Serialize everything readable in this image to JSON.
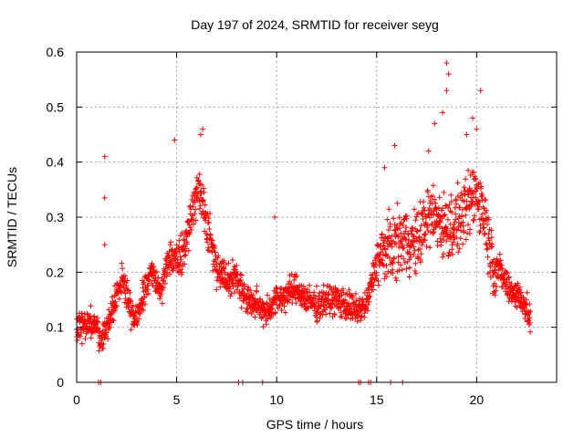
{
  "chart_data": {
    "type": "scatter",
    "title": "Day 197 of 2024, SRMTID for receiver seyg",
    "xlabel": "GPS time / hours",
    "ylabel": "SRMTID / TECUs",
    "xlim": [
      0,
      24
    ],
    "ylim": [
      0,
      0.6
    ],
    "xticks": [
      0,
      5,
      10,
      15,
      20
    ],
    "xtick_labels": [
      "0",
      "5",
      "10",
      "15",
      "20"
    ],
    "yticks": [
      0,
      0.1,
      0.2,
      0.3,
      0.4,
      0.5,
      0.6
    ],
    "ytick_labels": [
      "0",
      "0.1",
      "0.2",
      "0.3",
      "0.4",
      "0.5",
      "0.6"
    ],
    "grid": true,
    "marker": "+",
    "color": "#ff0000",
    "trend": [
      [
        0.0,
        0.1
      ],
      [
        0.5,
        0.11
      ],
      [
        1.0,
        0.1
      ],
      [
        1.2,
        0.07
      ],
      [
        1.5,
        0.1
      ],
      [
        2.0,
        0.16
      ],
      [
        2.3,
        0.19
      ],
      [
        2.7,
        0.13
      ],
      [
        3.0,
        0.11
      ],
      [
        3.4,
        0.17
      ],
      [
        3.8,
        0.2
      ],
      [
        4.2,
        0.16
      ],
      [
        4.5,
        0.22
      ],
      [
        5.0,
        0.23
      ],
      [
        5.4,
        0.24
      ],
      [
        5.8,
        0.32
      ],
      [
        6.1,
        0.35
      ],
      [
        6.3,
        0.33
      ],
      [
        6.6,
        0.27
      ],
      [
        7.0,
        0.21
      ],
      [
        7.5,
        0.19
      ],
      [
        8.0,
        0.19
      ],
      [
        8.5,
        0.15
      ],
      [
        9.0,
        0.14
      ],
      [
        9.5,
        0.13
      ],
      [
        10.0,
        0.15
      ],
      [
        10.5,
        0.16
      ],
      [
        11.0,
        0.17
      ],
      [
        11.5,
        0.15
      ],
      [
        12.0,
        0.14
      ],
      [
        12.5,
        0.15
      ],
      [
        13.0,
        0.15
      ],
      [
        13.5,
        0.14
      ],
      [
        14.0,
        0.13
      ],
      [
        14.5,
        0.14
      ],
      [
        15.0,
        0.22
      ],
      [
        15.5,
        0.24
      ],
      [
        16.0,
        0.25
      ],
      [
        16.5,
        0.26
      ],
      [
        17.0,
        0.25
      ],
      [
        17.5,
        0.3
      ],
      [
        18.0,
        0.3
      ],
      [
        18.5,
        0.28
      ],
      [
        19.0,
        0.29
      ],
      [
        19.5,
        0.31
      ],
      [
        20.0,
        0.35
      ],
      [
        20.4,
        0.3
      ],
      [
        20.8,
        0.22
      ],
      [
        21.2,
        0.2
      ],
      [
        21.6,
        0.17
      ],
      [
        22.0,
        0.16
      ],
      [
        22.3,
        0.15
      ],
      [
        22.7,
        0.11
      ]
    ],
    "spikes": [
      [
        1.4,
        0.41
      ],
      [
        1.4,
        0.335
      ],
      [
        1.4,
        0.25
      ],
      [
        4.9,
        0.44
      ],
      [
        6.3,
        0.46
      ],
      [
        6.2,
        0.45
      ],
      [
        9.9,
        0.3
      ],
      [
        15.4,
        0.39
      ],
      [
        15.9,
        0.43
      ],
      [
        17.6,
        0.42
      ],
      [
        18.3,
        0.49
      ],
      [
        18.5,
        0.58
      ],
      [
        18.6,
        0.56
      ],
      [
        18.5,
        0.53
      ],
      [
        19.8,
        0.48
      ],
      [
        20.2,
        0.53
      ],
      [
        20.0,
        0.46
      ],
      [
        19.5,
        0.45
      ],
      [
        17.9,
        0.47
      ]
    ],
    "zero_points": [
      1.1,
      1.2,
      8.1,
      8.3,
      9.3,
      14.1,
      14.2,
      14.6,
      14.7,
      15.7,
      16.3
    ]
  }
}
